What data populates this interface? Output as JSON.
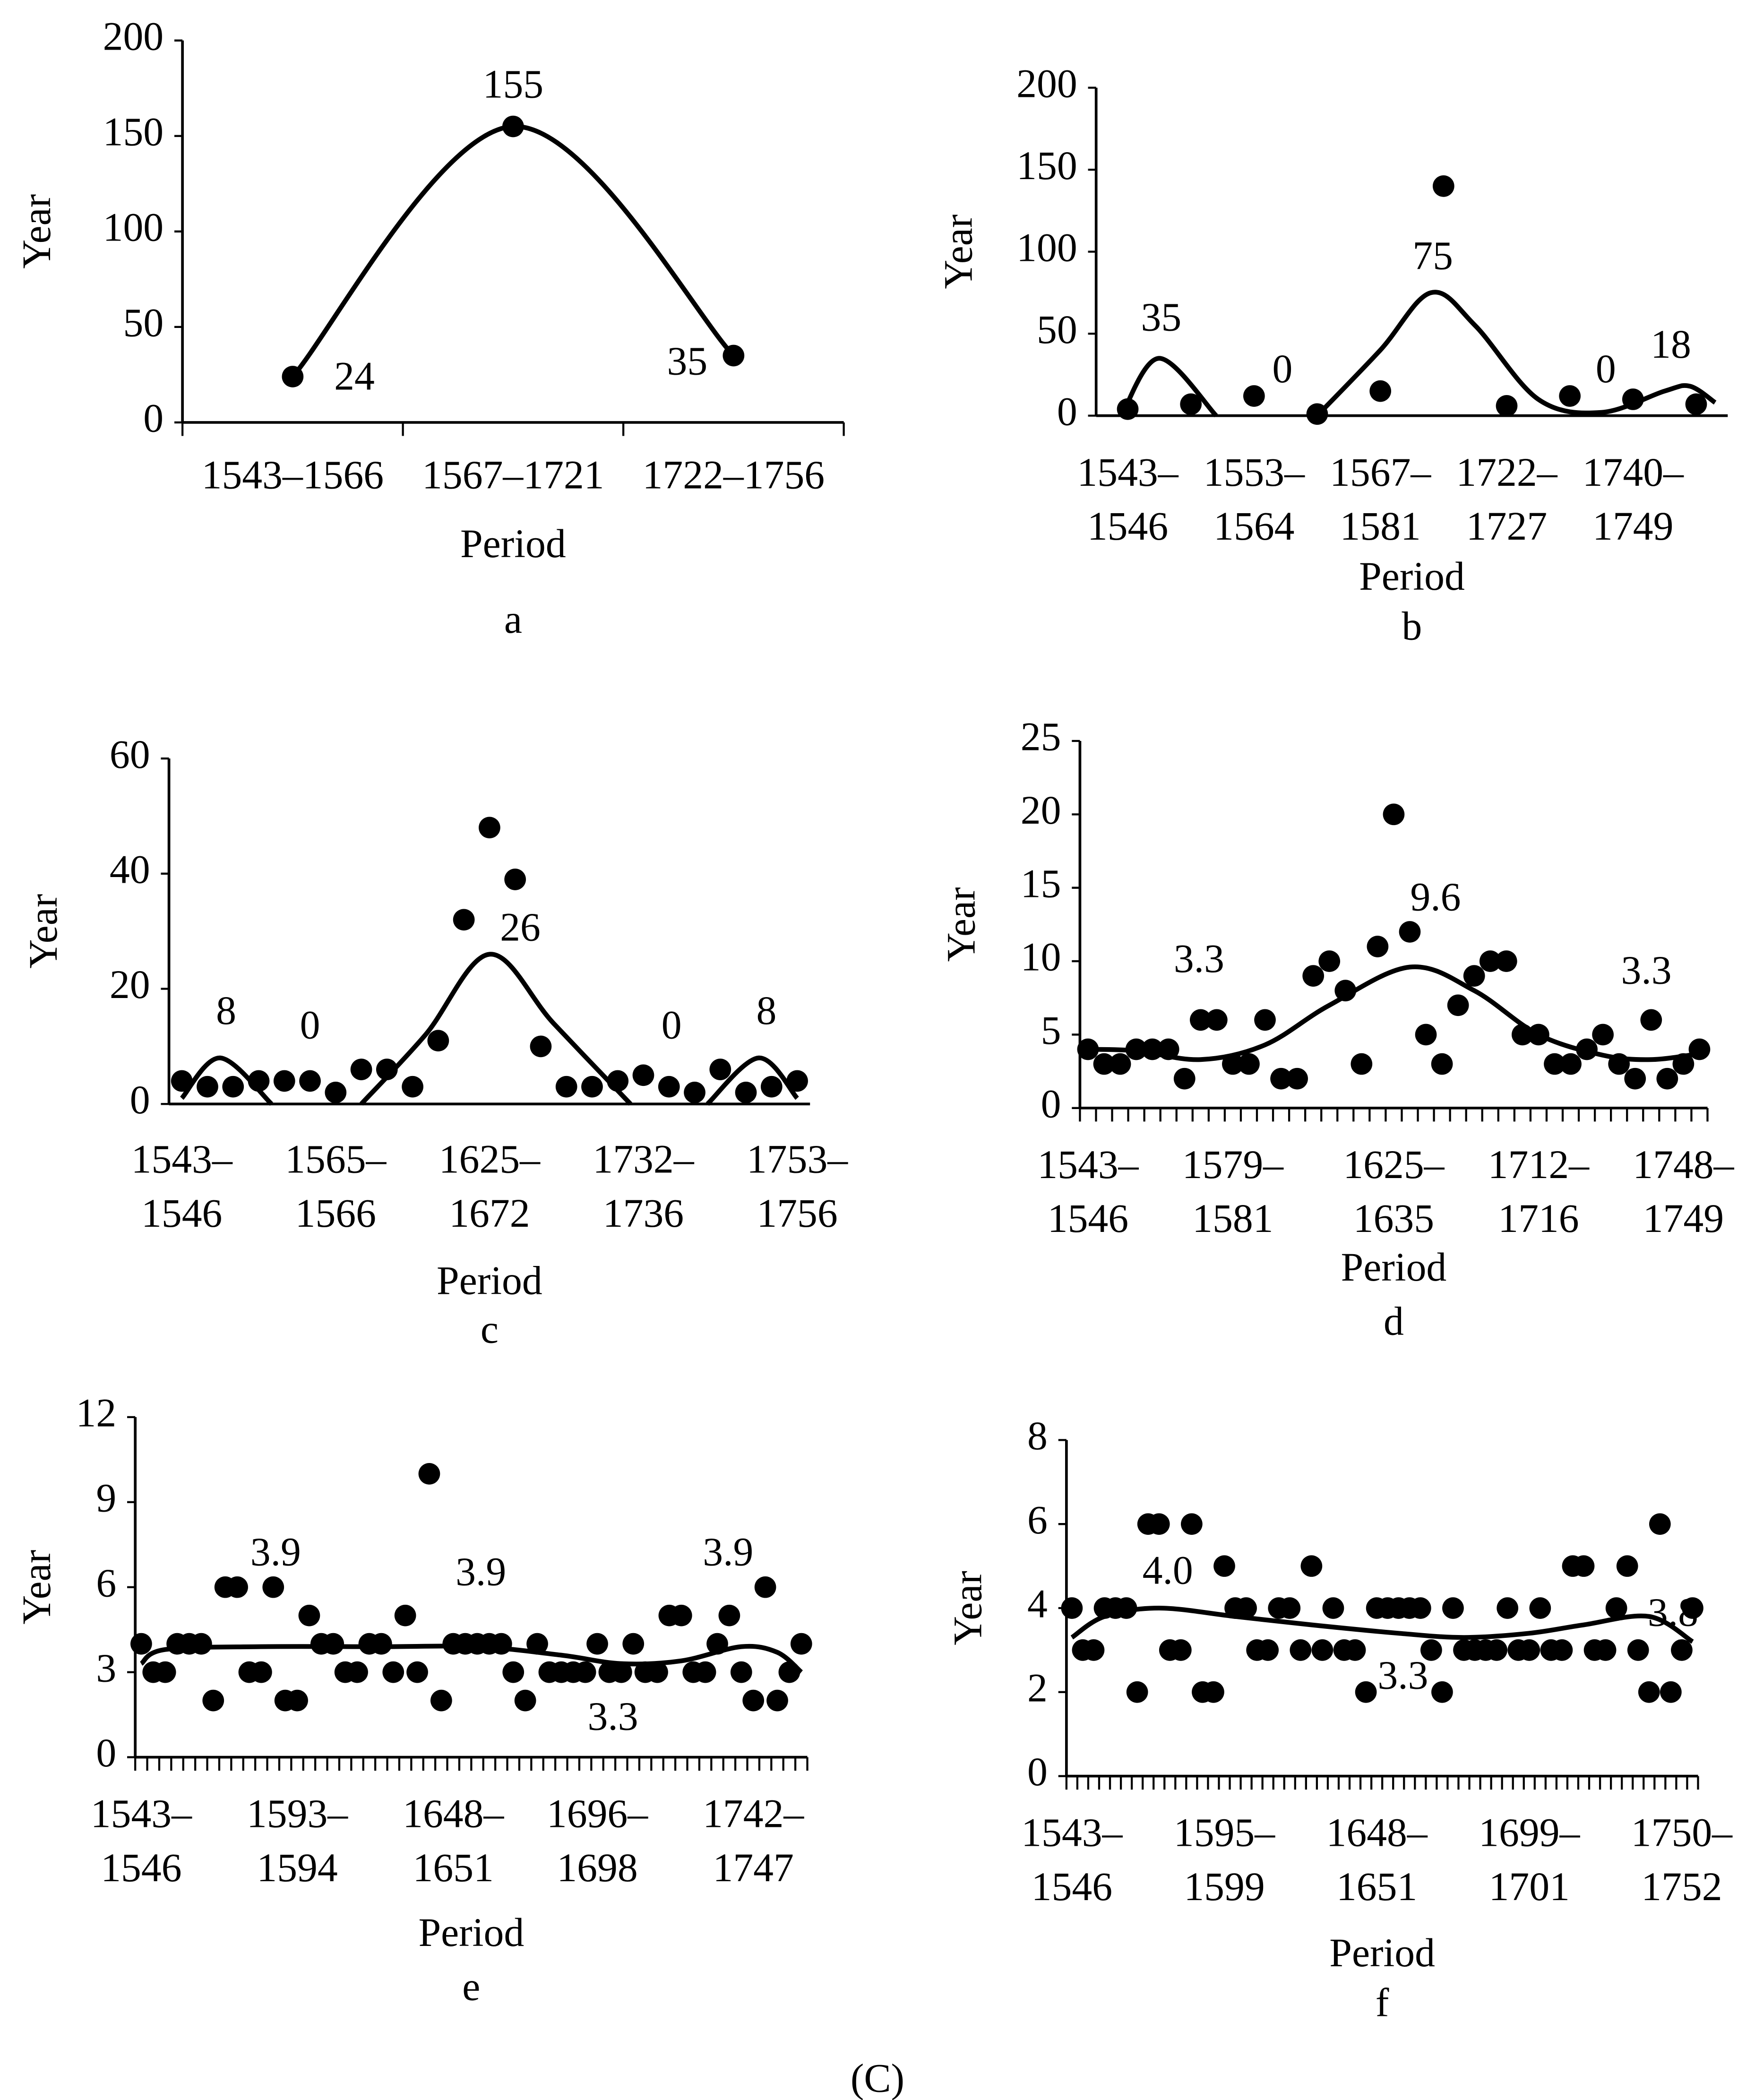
{
  "caption": "(C)",
  "chart_data": [
    {
      "type": "scatter",
      "title": "a",
      "xlabel": "Period",
      "ylabel": "Year",
      "categories": [
        "1543–1566",
        "1567–1721",
        "1722–1756"
      ],
      "values": [
        24,
        155,
        35
      ],
      "color": "#000000",
      "trend": {
        "x": [
          0,
          1,
          2
        ],
        "y": [
          24,
          155,
          35
        ]
      },
      "ylim": [
        0,
        200
      ],
      "yticks": [
        0,
        50,
        100,
        150,
        200
      ],
      "x_tick_marks": true,
      "annotations": [
        {
          "text": "155",
          "x": 1,
          "y": 175
        },
        {
          "text": "24",
          "x": 0.28,
          "y": 22
        },
        {
          "text": "35",
          "x": 1.79,
          "y": 30
        }
      ]
    },
    {
      "type": "scatter",
      "title": "b",
      "xlabel": "Period",
      "ylabel": "Year",
      "categories": [
        [
          "1543–",
          "1546"
        ],
        null,
        [
          "1553–",
          "1564"
        ],
        null,
        [
          "1567–",
          "1581"
        ],
        null,
        [
          "1722–",
          "1727"
        ],
        null,
        [
          "1740–",
          "1749"
        ],
        null
      ],
      "values": [
        4,
        7,
        12,
        1,
        15,
        140,
        6,
        12,
        10,
        7
      ],
      "color": "#000000",
      "trend": {
        "x": [
          -0.1,
          0.5,
          1.4,
          null,
          3,
          4,
          4.8,
          5.5,
          6.5,
          7.5,
          8.5,
          8.9,
          9.3
        ],
        "y": [
          0,
          35,
          0,
          null,
          0,
          40,
          75,
          55,
          10,
          2,
          15,
          18,
          8
        ]
      },
      "ylim": [
        0,
        200
      ],
      "yticks": [
        0,
        50,
        100,
        150,
        200
      ],
      "x_tick_marks": false,
      "annotations": [
        {
          "text": "35",
          "x": 0.53,
          "y": 57.6
        },
        {
          "text": "0",
          "x": 2.45,
          "y": 26
        },
        {
          "text": "75",
          "x": 4.83,
          "y": 95
        },
        {
          "text": "0",
          "x": 7.57,
          "y": 26
        },
        {
          "text": "18",
          "x": 8.6,
          "y": 41
        }
      ]
    },
    {
      "type": "scatter",
      "title": "c",
      "xlabel": "Period",
      "ylabel": "Year",
      "categories": [
        [
          "1543–",
          "1546"
        ],
        null,
        null,
        null,
        null,
        null,
        [
          "1565–",
          "1566"
        ],
        null,
        null,
        null,
        null,
        null,
        [
          "1625–",
          "1672"
        ],
        null,
        null,
        null,
        null,
        null,
        [
          "1732–",
          "1736"
        ],
        null,
        null,
        null,
        null,
        null,
        [
          "1753–",
          "1756"
        ]
      ],
      "values": [
        4,
        3,
        3,
        4,
        4,
        4,
        2,
        6,
        6,
        3,
        11,
        32,
        48,
        39,
        10,
        3,
        3,
        4,
        5,
        3,
        2,
        6,
        2,
        3,
        4
      ],
      "color": "#000000",
      "trend": {
        "x": [
          0,
          1.5,
          3.5,
          null,
          7,
          9.5,
          12,
          14.5,
          17.5,
          null,
          20.5,
          22.5,
          24
        ],
        "y": [
          1,
          8,
          0,
          null,
          0,
          12,
          26,
          14,
          0,
          null,
          0,
          8,
          1
        ]
      },
      "ylim": [
        0,
        60
      ],
      "yticks": [
        0,
        20,
        40,
        60
      ],
      "x_tick_marks": false,
      "annotations": [
        {
          "text": "8",
          "x": 1.73,
          "y": 15.5
        },
        {
          "text": "0",
          "x": 5,
          "y": 13
        },
        {
          "text": "26",
          "x": 13.2,
          "y": 30
        },
        {
          "text": "0",
          "x": 19.1,
          "y": 13
        },
        {
          "text": "8",
          "x": 22.8,
          "y": 15.5
        }
      ]
    },
    {
      "type": "scatter",
      "title": "d",
      "xlabel": "Period",
      "ylabel": "Year",
      "categories": [
        [
          "1543–",
          "1546"
        ],
        null,
        null,
        null,
        null,
        null,
        null,
        null,
        null,
        [
          "1579–",
          "1581"
        ],
        null,
        null,
        null,
        null,
        null,
        null,
        null,
        null,
        null,
        [
          "1625–",
          "1635"
        ],
        null,
        null,
        null,
        null,
        null,
        null,
        null,
        null,
        [
          "1712–",
          "1716"
        ],
        null,
        null,
        null,
        null,
        null,
        null,
        null,
        null,
        [
          "1748–",
          "1749"
        ],
        null
      ],
      "values": [
        4,
        3,
        3,
        4,
        4,
        4,
        2,
        6,
        6,
        3,
        3,
        6,
        2,
        2,
        9,
        10,
        8,
        3,
        11,
        20,
        12,
        5,
        3,
        7,
        9,
        10,
        10,
        5,
        5,
        3,
        3,
        4,
        5,
        3,
        2,
        6,
        2,
        3,
        4
      ],
      "color": "#000000",
      "trend": {
        "x": [
          0,
          3,
          7,
          11,
          15,
          20,
          24,
          28,
          32,
          35,
          38
        ],
        "y": [
          4,
          3.9,
          3.3,
          4.3,
          7,
          9.6,
          8,
          5,
          3.6,
          3.3,
          3.7
        ]
      },
      "ylim": [
        0,
        25
      ],
      "yticks": [
        0,
        5,
        10,
        15,
        20,
        25
      ],
      "x_tick_marks": true,
      "annotations": [
        {
          "text": "3.3",
          "x": 6.9,
          "y": 9.9
        },
        {
          "text": "9.6",
          "x": 21.6,
          "y": 14.1
        },
        {
          "text": "3.3",
          "x": 34.7,
          "y": 9.1
        }
      ]
    },
    {
      "type": "scatter",
      "title": "e",
      "xlabel": "Period",
      "ylabel": "Year",
      "categories": [
        [
          "1543–",
          "1546"
        ],
        null,
        null,
        null,
        null,
        null,
        null,
        null,
        null,
        null,
        null,
        null,
        null,
        [
          "1593–",
          "1594"
        ],
        null,
        null,
        null,
        null,
        null,
        null,
        null,
        null,
        null,
        null,
        null,
        null,
        [
          "1648–",
          "1651"
        ],
        null,
        null,
        null,
        null,
        null,
        null,
        null,
        null,
        null,
        null,
        null,
        [
          "1696–",
          "1698"
        ],
        null,
        null,
        null,
        null,
        null,
        null,
        null,
        null,
        null,
        null,
        null,
        null,
        [
          "1742–",
          "1747"
        ],
        null,
        null,
        null,
        null
      ],
      "values": [
        4,
        3,
        3,
        4,
        4,
        4,
        2,
        6,
        6,
        3,
        3,
        6,
        2,
        2,
        5,
        4,
        4,
        3,
        3,
        4,
        4,
        3,
        5,
        3,
        10,
        2,
        4,
        4,
        4,
        4,
        4,
        3,
        2,
        4,
        3,
        3,
        3,
        3,
        4,
        3,
        3,
        4,
        3,
        3,
        5,
        5,
        3,
        3,
        4,
        5,
        3,
        2,
        6,
        2,
        3,
        4
      ],
      "color": "#000000",
      "trend": {
        "x": [
          0,
          2,
          10,
          20,
          28,
          35,
          40,
          45,
          50,
          53,
          55
        ],
        "y": [
          3.3,
          3.8,
          3.9,
          3.9,
          3.9,
          3.6,
          3.3,
          3.4,
          3.9,
          3.7,
          3.0
        ]
      },
      "ylim": [
        0,
        12
      ],
      "yticks": [
        0,
        3,
        6,
        9,
        12
      ],
      "x_tick_marks": true,
      "annotations": [
        {
          "text": "3.9",
          "x": 11.2,
          "y": 7.1
        },
        {
          "text": "3.9",
          "x": 28.3,
          "y": 6.4
        },
        {
          "text": "3.3",
          "x": 39.3,
          "y": 1.3
        },
        {
          "text": "3.9",
          "x": 48.9,
          "y": 7.1
        }
      ]
    },
    {
      "type": "scatter",
      "title": "f",
      "xlabel": "Period",
      "ylabel": "Year",
      "categories": [
        [
          "1543–",
          "1546"
        ],
        null,
        null,
        null,
        null,
        null,
        null,
        null,
        null,
        null,
        null,
        null,
        null,
        null,
        [
          "1595–",
          "1599"
        ],
        null,
        null,
        null,
        null,
        null,
        null,
        null,
        null,
        null,
        null,
        null,
        null,
        null,
        [
          "1648–",
          "1651"
        ],
        null,
        null,
        null,
        null,
        null,
        null,
        null,
        null,
        null,
        null,
        null,
        null,
        null,
        [
          "1699–",
          "1701"
        ],
        null,
        null,
        null,
        null,
        null,
        null,
        null,
        null,
        null,
        null,
        null,
        null,
        null,
        [
          "1750–",
          "1752"
        ],
        null
      ],
      "values": [
        4,
        3,
        3,
        4,
        4,
        4,
        2,
        6,
        6,
        3,
        3,
        6,
        2,
        2,
        5,
        4,
        4,
        3,
        3,
        4,
        4,
        3,
        5,
        3,
        4,
        3,
        3,
        2,
        4,
        4,
        4,
        4,
        4,
        3,
        2,
        4,
        3,
        3,
        3,
        3,
        4,
        3,
        3,
        4,
        3,
        3,
        5,
        5,
        3,
        3,
        4,
        5,
        3,
        2,
        6,
        2,
        3,
        4
      ],
      "color": "#000000",
      "trend": {
        "x": [
          0,
          3,
          8,
          15,
          22,
          30,
          36,
          42,
          47,
          53,
          57
        ],
        "y": [
          3.3,
          3.8,
          4.0,
          3.8,
          3.6,
          3.4,
          3.3,
          3.4,
          3.6,
          3.8,
          3.2
        ]
      },
      "ylim": [
        0,
        8
      ],
      "yticks": [
        0,
        2,
        4,
        6,
        8
      ],
      "x_tick_marks": true,
      "annotations": [
        {
          "text": "4.0",
          "x": 8.8,
          "y": 4.8
        },
        {
          "text": "3.3",
          "x": 30.4,
          "y": 2.3
        },
        {
          "text": "3.8",
          "x": 55.2,
          "y": 3.8
        }
      ]
    }
  ]
}
